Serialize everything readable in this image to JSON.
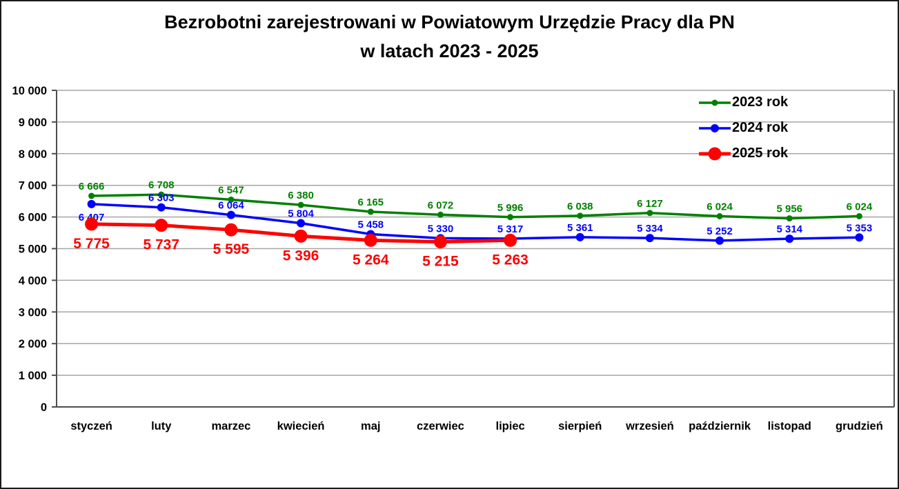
{
  "title": {
    "line1": "Bezrobotni zarejestrowani w Powiatowym Urzędzie Pracy dla PN",
    "line2": "w latach 2023 - 2025"
  },
  "chart_data": {
    "type": "line",
    "categories": [
      "styczeń",
      "luty",
      "marzec",
      "kwiecień",
      "maj",
      "czerwiec",
      "lipiec",
      "sierpień",
      "wrzesień",
      "październik",
      "listopad",
      "grudzień"
    ],
    "series": [
      {
        "name": "2023 rok",
        "color": "#008000",
        "values": [
          6666,
          6708,
          6547,
          6380,
          6165,
          6072,
          5996,
          6038,
          6127,
          6024,
          5956,
          6024
        ]
      },
      {
        "name": "2024 rok",
        "color": "#0000FF",
        "values": [
          6407,
          6303,
          6064,
          5804,
          5458,
          5330,
          5317,
          5361,
          5334,
          5252,
          5314,
          5353
        ]
      },
      {
        "name": "2025 rok",
        "color": "#FF0000",
        "values": [
          5775,
          5737,
          5595,
          5396,
          5264,
          5215,
          5263
        ]
      }
    ],
    "ylim": [
      0,
      10000
    ],
    "ytick_step": 1000,
    "ytick_labels": [
      "0",
      "1 000",
      "2 000",
      "3 000",
      "4 000",
      "5 000",
      "6 000",
      "7 000",
      "8 000",
      "9 000",
      "10 000"
    ],
    "grid": "horizontal",
    "legend_position": "top-right",
    "data_labels": "all-points",
    "colors": {
      "gridline": "#a6a6a6",
      "axis": "#4d4d4d",
      "text": "#000000"
    }
  }
}
